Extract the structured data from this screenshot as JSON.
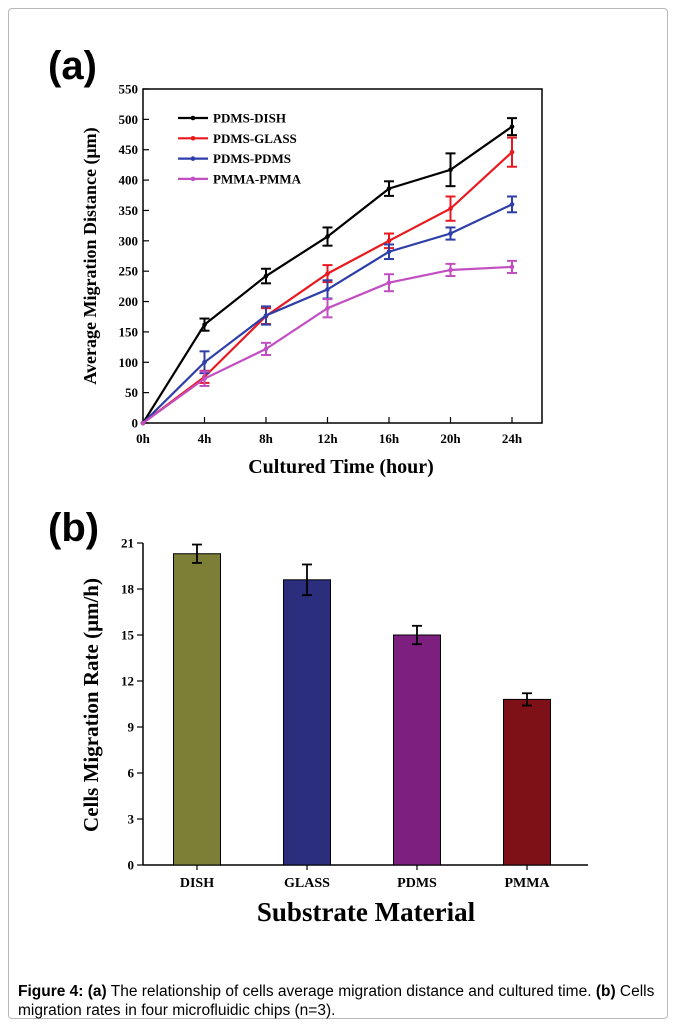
{
  "chart_data": [
    {
      "panel_label": "(a)",
      "type": "line",
      "categories": [
        "0h",
        "4h",
        "8h",
        "12h",
        "16h",
        "20h",
        "24h"
      ],
      "xlabel": "Cultured Time (hour)",
      "ylabel": "Average Migration Distance (μm)",
      "ylim": [
        0,
        550
      ],
      "yticks": [
        "0",
        "50",
        "100",
        "150",
        "200",
        "250",
        "300",
        "350",
        "400",
        "450",
        "500",
        "550"
      ],
      "legend_position": "top-left",
      "series": [
        {
          "name": "PDMS-DISH",
          "color": "#000000",
          "values": [
            0,
            162,
            242,
            307,
            386,
            417,
            488
          ],
          "errors": [
            0,
            10,
            12,
            15,
            12,
            27,
            14
          ]
        },
        {
          "name": "PDMS-GLASS",
          "color": "#e8191f",
          "values": [
            0,
            76,
            176,
            246,
            300,
            353,
            446
          ],
          "errors": [
            0,
            10,
            13,
            14,
            12,
            20,
            24
          ]
        },
        {
          "name": "PDMS-PDMS",
          "color": "#2d3ea8",
          "values": [
            0,
            100,
            177,
            220,
            282,
            312,
            360
          ],
          "errors": [
            0,
            18,
            15,
            15,
            12,
            10,
            13
          ]
        },
        {
          "name": "PMMA-PMMA",
          "color": "#c24fc2",
          "values": [
            0,
            73,
            122,
            189,
            231,
            252,
            257
          ],
          "errors": [
            0,
            12,
            10,
            15,
            14,
            10,
            10
          ]
        }
      ]
    },
    {
      "panel_label": "(b)",
      "type": "bar",
      "categories": [
        "DISH",
        "GLASS",
        "PDMS",
        "PMMA"
      ],
      "values": [
        20.3,
        18.6,
        15.0,
        10.8
      ],
      "errors": [
        0.6,
        1.0,
        0.6,
        0.4
      ],
      "colors": [
        "#7e7f37",
        "#2a2e7d",
        "#7c1f7e",
        "#7d1117"
      ],
      "xlabel": "Substrate Material",
      "ylabel": "Cells Migration Rate (μm/h)",
      "ylim": [
        0,
        21
      ],
      "yticks": [
        "0",
        "3",
        "6",
        "9",
        "12",
        "15",
        "18",
        "21"
      ]
    }
  ],
  "caption": {
    "figure_label": "Figure 4:",
    "part_a_label": "(a)",
    "part_a_text": " The relationship of cells average migration distance and cultured time. ",
    "part_b_label": "(b)",
    "part_b_text": " Cells migration rates in four microfluidic chips (n=3)."
  }
}
